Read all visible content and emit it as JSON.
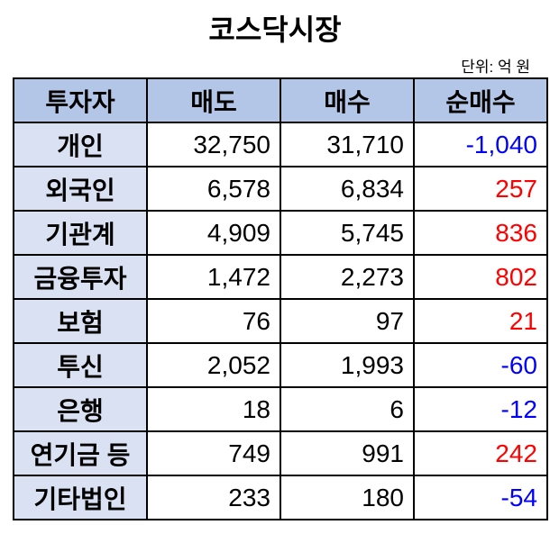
{
  "title": "코스닥시장",
  "unit": "단위: 억 원",
  "colors": {
    "header_bg": "#b4c6e7",
    "name_bg": "#d9e1f2",
    "positive": "#ff0000",
    "negative": "#0000ff"
  },
  "table": {
    "headers": [
      "투자자",
      "매도",
      "매수",
      "순매수"
    ],
    "rows": [
      {
        "investor": "개인",
        "sell": "32,750",
        "buy": "31,710",
        "net": "-1,040",
        "sign": "neg"
      },
      {
        "investor": "외국인",
        "sell": "6,578",
        "buy": "6,834",
        "net": "257",
        "sign": "pos"
      },
      {
        "investor": "기관계",
        "sell": "4,909",
        "buy": "5,745",
        "net": "836",
        "sign": "pos"
      },
      {
        "investor": "금융투자",
        "sell": "1,472",
        "buy": "2,273",
        "net": "802",
        "sign": "pos"
      },
      {
        "investor": "보험",
        "sell": "76",
        "buy": "97",
        "net": "21",
        "sign": "pos"
      },
      {
        "investor": "투신",
        "sell": "2,052",
        "buy": "1,993",
        "net": "-60",
        "sign": "neg"
      },
      {
        "investor": "은행",
        "sell": "18",
        "buy": "6",
        "net": "-12",
        "sign": "neg"
      },
      {
        "investor": "연기금 등",
        "sell": "749",
        "buy": "991",
        "net": "242",
        "sign": "pos"
      },
      {
        "investor": "기타법인",
        "sell": "233",
        "buy": "180",
        "net": "-54",
        "sign": "neg"
      }
    ]
  }
}
